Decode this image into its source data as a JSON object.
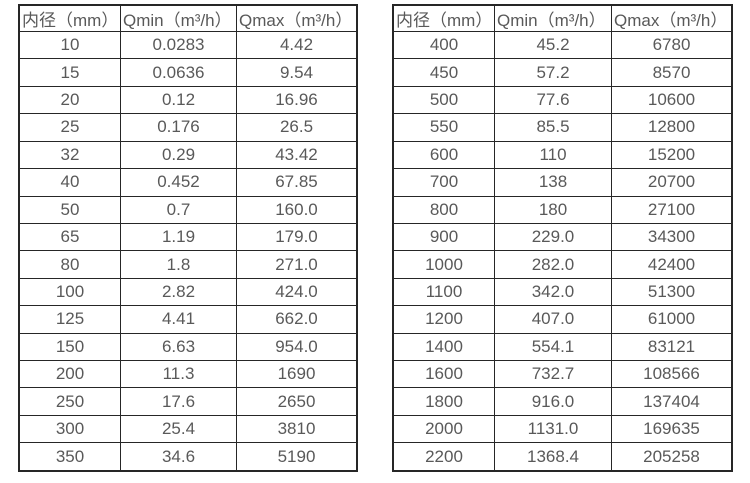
{
  "colors": {
    "background": "#ffffff",
    "border": "#262626",
    "text": "#595959"
  },
  "tables": [
    {
      "id": "small-diameters",
      "headers": [
        "内径（mm）",
        "Qmin（m³/h）",
        "Qmax（m³/h）"
      ],
      "rows": [
        [
          "10",
          "0.0283",
          "4.42"
        ],
        [
          "15",
          "0.0636",
          "9.54"
        ],
        [
          "20",
          "0.12",
          "16.96"
        ],
        [
          "25",
          "0.176",
          "26.5"
        ],
        [
          "32",
          "0.29",
          "43.42"
        ],
        [
          "40",
          "0.452",
          "67.85"
        ],
        [
          "50",
          "0.7",
          "160.0"
        ],
        [
          "65",
          "1.19",
          "179.0"
        ],
        [
          "80",
          "1.8",
          "271.0"
        ],
        [
          "100",
          "2.82",
          "424.0"
        ],
        [
          "125",
          "4.41",
          "662.0"
        ],
        [
          "150",
          "6.63",
          "954.0"
        ],
        [
          "200",
          "11.3",
          "1690"
        ],
        [
          "250",
          "17.6",
          "2650"
        ],
        [
          "300",
          "25.4",
          "3810"
        ],
        [
          "350",
          "34.6",
          "5190"
        ]
      ]
    },
    {
      "id": "large-diameters",
      "headers": [
        "内径（mm）",
        "Qmin（m³/h）",
        "Qmax（m³/h）"
      ],
      "rows": [
        [
          "400",
          "45.2",
          "6780"
        ],
        [
          "450",
          "57.2",
          "8570"
        ],
        [
          "500",
          "77.6",
          "10600"
        ],
        [
          "550",
          "85.5",
          "12800"
        ],
        [
          "600",
          "110",
          "15200"
        ],
        [
          "700",
          "138",
          "20700"
        ],
        [
          "800",
          "180",
          "27100"
        ],
        [
          "900",
          "229.0",
          "34300"
        ],
        [
          "1000",
          "282.0",
          "42400"
        ],
        [
          "1100",
          "342.0",
          "51300"
        ],
        [
          "1200",
          "407.0",
          "61000"
        ],
        [
          "1400",
          "554.1",
          "83121"
        ],
        [
          "1600",
          "732.7",
          "108566"
        ],
        [
          "1800",
          "916.0",
          "137404"
        ],
        [
          "2000",
          "1131.0",
          "169635"
        ],
        [
          "2200",
          "1368.4",
          "205258"
        ]
      ]
    }
  ]
}
